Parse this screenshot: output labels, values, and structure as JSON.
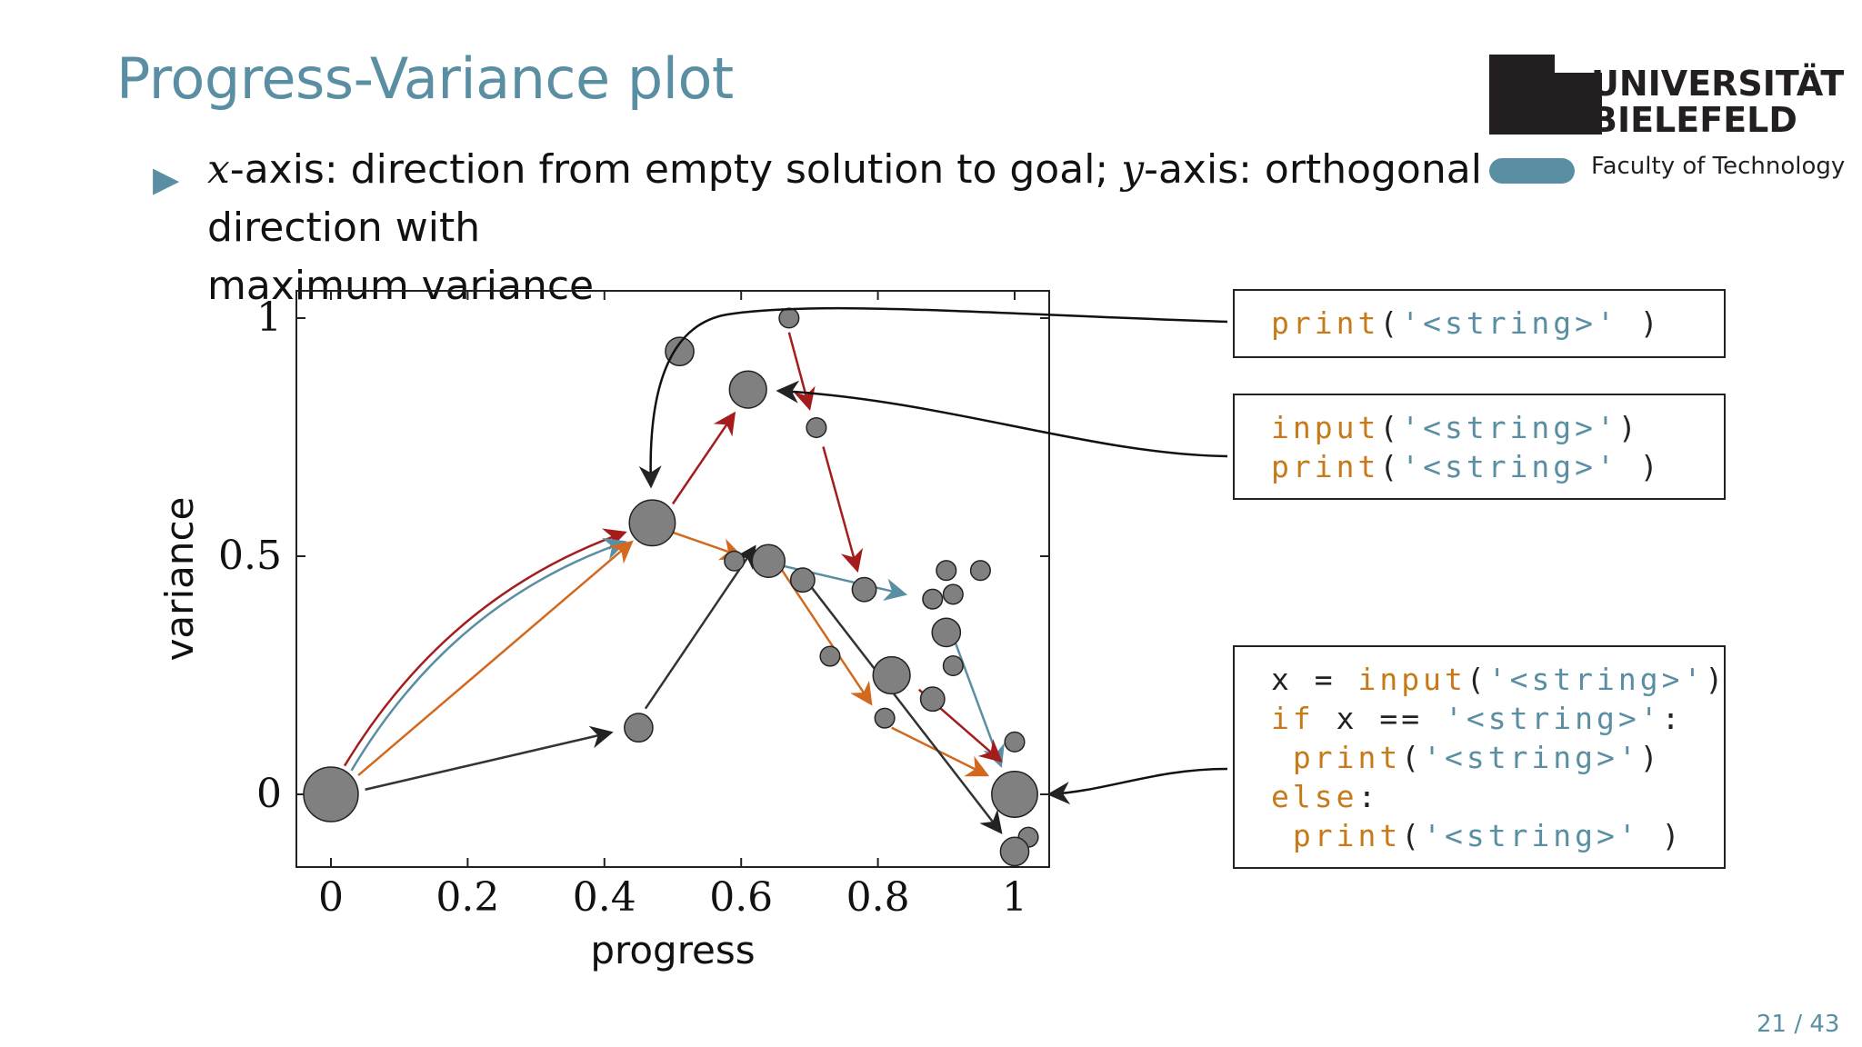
{
  "slide": {
    "title": "Progress-Variance plot",
    "bullet_x": "x",
    "bullet_part1": "-axis: direction from empty solution to goal; ",
    "bullet_y": "y",
    "bullet_part2": "-axis: orthogonal direction with",
    "bullet_line2": "maximum variance",
    "page": "21 / 43"
  },
  "logo": {
    "line1": "UNIVERSITÄT",
    "line2": "BIELEFELD",
    "faculty": "Faculty of Technology"
  },
  "code_boxes": [
    {
      "lines": [
        [
          {
            "t": "print",
            "c": "kw"
          },
          {
            "t": "(",
            "c": "plain"
          },
          {
            "t": "'<string>'",
            "c": "str"
          },
          {
            "t": " )",
            "c": "plain"
          }
        ]
      ]
    },
    {
      "lines": [
        [
          {
            "t": "input",
            "c": "kw"
          },
          {
            "t": "(",
            "c": "plain"
          },
          {
            "t": "'<string>'",
            "c": "str"
          },
          {
            "t": ")",
            "c": "plain"
          }
        ],
        [
          {
            "t": "print",
            "c": "kw"
          },
          {
            "t": "(",
            "c": "plain"
          },
          {
            "t": "'<string>'",
            "c": "str"
          },
          {
            "t": " )",
            "c": "plain"
          }
        ]
      ]
    },
    {
      "lines": [
        [
          {
            "t": "x = ",
            "c": "plain"
          },
          {
            "t": "input",
            "c": "kw"
          },
          {
            "t": "(",
            "c": "plain"
          },
          {
            "t": "'<string>'",
            "c": "str"
          },
          {
            "t": ")",
            "c": "plain"
          }
        ],
        [
          {
            "t": "if",
            "c": "kw"
          },
          {
            "t": " x == ",
            "c": "plain"
          },
          {
            "t": "'<string>'",
            "c": "str"
          },
          {
            "t": ":",
            "c": "plain"
          }
        ],
        [
          {
            "t": " print",
            "c": "kw"
          },
          {
            "t": "(",
            "c": "plain"
          },
          {
            "t": "'<string>'",
            "c": "str"
          },
          {
            "t": ")",
            "c": "plain"
          }
        ],
        [
          {
            "t": "else",
            "c": "kw"
          },
          {
            "t": ":",
            "c": "plain"
          }
        ],
        [
          {
            "t": " print",
            "c": "kw"
          },
          {
            "t": "(",
            "c": "plain"
          },
          {
            "t": "'<string>'",
            "c": "str"
          },
          {
            "t": " )",
            "c": "plain"
          }
        ]
      ]
    }
  ],
  "colors": {
    "accent": "#5a8fa3",
    "red": "#a51c1c",
    "orange": "#d2691e",
    "teal": "#5a8fa3",
    "dark": "#333333",
    "node": "#808080"
  },
  "chart_data": {
    "type": "scatter",
    "xlabel": "progress",
    "ylabel": "variance",
    "xlim": [
      -0.05,
      1.05
    ],
    "ylim": [
      -0.15,
      1.05
    ],
    "xticks": [
      "0",
      "0.2",
      "0.4",
      "0.6",
      "0.8",
      "1"
    ],
    "xtick_values": [
      0,
      0.2,
      0.4,
      0.6,
      0.8,
      1
    ],
    "yticks": [
      "0",
      "0.5",
      "1"
    ],
    "ytick_values": [
      0,
      0.5,
      1
    ],
    "nodes": [
      {
        "x": 0.0,
        "y": 0.0,
        "size": 5
      },
      {
        "x": 0.47,
        "y": 0.57,
        "size": 4
      },
      {
        "x": 0.61,
        "y": 0.85,
        "size": 3
      },
      {
        "x": 0.51,
        "y": 0.93,
        "size": 2
      },
      {
        "x": 0.67,
        "y": 1.0,
        "size": 1
      },
      {
        "x": 0.71,
        "y": 0.77,
        "size": 1
      },
      {
        "x": 0.45,
        "y": 0.14,
        "size": 2
      },
      {
        "x": 0.64,
        "y": 0.49,
        "size": 2.5
      },
      {
        "x": 0.59,
        "y": 0.49,
        "size": 1
      },
      {
        "x": 0.69,
        "y": 0.45,
        "size": 1.5
      },
      {
        "x": 0.78,
        "y": 0.43,
        "size": 1.5
      },
      {
        "x": 0.88,
        "y": 0.41,
        "size": 1
      },
      {
        "x": 0.9,
        "y": 0.47,
        "size": 1
      },
      {
        "x": 0.91,
        "y": 0.42,
        "size": 1
      },
      {
        "x": 0.95,
        "y": 0.47,
        "size": 1
      },
      {
        "x": 0.9,
        "y": 0.34,
        "size": 2
      },
      {
        "x": 0.91,
        "y": 0.27,
        "size": 1
      },
      {
        "x": 0.73,
        "y": 0.29,
        "size": 1
      },
      {
        "x": 0.82,
        "y": 0.25,
        "size": 3
      },
      {
        "x": 0.88,
        "y": 0.2,
        "size": 1.5
      },
      {
        "x": 0.81,
        "y": 0.16,
        "size": 1
      },
      {
        "x": 1.0,
        "y": 0.0,
        "size": 4
      },
      {
        "x": 1.0,
        "y": 0.11,
        "size": 1
      },
      {
        "x": 1.02,
        "y": -0.09,
        "size": 1
      },
      {
        "x": 1.0,
        "y": -0.12,
        "size": 2
      }
    ],
    "edges": [
      {
        "from": [
          0.02,
          0.06
        ],
        "to": [
          0.43,
          0.55
        ],
        "color": "red",
        "curve": true
      },
      {
        "from": [
          0.03,
          0.05
        ],
        "to": [
          0.43,
          0.53
        ],
        "color": "teal",
        "curve": true
      },
      {
        "from": [
          0.04,
          0.04
        ],
        "to": [
          0.44,
          0.53
        ],
        "color": "orange",
        "curve": false
      },
      {
        "from": [
          0.05,
          0.01
        ],
        "to": [
          0.41,
          0.13
        ],
        "color": "dark",
        "curve": false
      },
      {
        "from": [
          0.46,
          0.18
        ],
        "to": [
          0.62,
          0.52
        ],
        "color": "dark",
        "curve": false
      },
      {
        "from": [
          0.5,
          0.61
        ],
        "to": [
          0.59,
          0.8
        ],
        "color": "red",
        "curve": false
      },
      {
        "from": [
          0.67,
          0.97
        ],
        "to": [
          0.7,
          0.81
        ],
        "color": "red",
        "curve": false
      },
      {
        "from": [
          0.72,
          0.73
        ],
        "to": [
          0.77,
          0.47
        ],
        "color": "red",
        "curve": false
      },
      {
        "from": [
          0.5,
          0.55
        ],
        "to": [
          0.6,
          0.5
        ],
        "color": "orange",
        "curve": false
      },
      {
        "from": [
          0.66,
          0.47
        ],
        "to": [
          0.79,
          0.19
        ],
        "color": "orange",
        "curve": false
      },
      {
        "from": [
          0.66,
          0.48
        ],
        "to": [
          0.84,
          0.42
        ],
        "color": "teal",
        "curve": false
      },
      {
        "from": [
          0.9,
          0.37
        ],
        "to": [
          0.98,
          0.06
        ],
        "color": "teal",
        "curve": false
      },
      {
        "from": [
          0.86,
          0.22
        ],
        "to": [
          0.98,
          0.07
        ],
        "color": "red",
        "curve": false
      },
      {
        "from": [
          0.82,
          0.14
        ],
        "to": [
          0.96,
          0.04
        ],
        "color": "orange",
        "curve": false
      },
      {
        "from": [
          0.7,
          0.44
        ],
        "to": [
          0.98,
          -0.08
        ],
        "color": "dark",
        "curve": false
      }
    ]
  }
}
